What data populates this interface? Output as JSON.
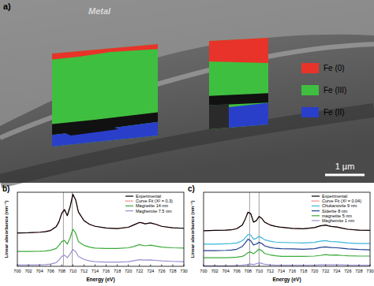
{
  "image_panel": {
    "label": "a)",
    "text": "Metal",
    "scale_bar": "1 µm",
    "legend": [
      {
        "name": "Fe (0)",
        "color": "#e8332a"
      },
      {
        "name": "Fe (III)",
        "color": "#3fbf3f"
      },
      {
        "name": "Fe (II)",
        "color": "#2a3fc9"
      }
    ]
  },
  "chart_data": [
    {
      "type": "line",
      "title": "b)",
      "x_label": "Energy (eV)",
      "y_label": "Linear absorbance (nm⁻¹)",
      "x": [
        700,
        702,
        704,
        705,
        706,
        707,
        707.5,
        708,
        708.5,
        709,
        709.5,
        710,
        710.5,
        711,
        712,
        713,
        714,
        716,
        718,
        720,
        721,
        722,
        722.5,
        723,
        724,
        725,
        726,
        728,
        730
      ],
      "xlim": [
        700,
        730
      ],
      "xticks": [
        700,
        702,
        704,
        706,
        708,
        710,
        712,
        714,
        716,
        718,
        720,
        722,
        724,
        726,
        728,
        730
      ],
      "ylim": [
        0,
        3.0
      ],
      "tick_labels": "x",
      "legend": "upper right",
      "vertical_lines": [
        708.3,
        709.9
      ],
      "series": [
        {
          "name": "Experimental",
          "color": "#000000",
          "line_style": "solid",
          "values": [
            1.35,
            1.36,
            1.38,
            1.4,
            1.45,
            1.6,
            1.8,
            2.15,
            2.3,
            2.05,
            2.4,
            2.92,
            2.7,
            2.2,
            1.85,
            1.7,
            1.62,
            1.55,
            1.53,
            1.58,
            1.68,
            1.78,
            1.76,
            1.72,
            1.76,
            1.7,
            1.62,
            1.56,
            1.54
          ]
        },
        {
          "name": "Curve Fit (X² = 0.3)",
          "color": "#e03030",
          "line_style": "dotted",
          "values": [
            1.34,
            1.36,
            1.38,
            1.41,
            1.46,
            1.62,
            1.83,
            2.13,
            2.27,
            2.08,
            2.42,
            2.88,
            2.68,
            2.22,
            1.86,
            1.7,
            1.63,
            1.55,
            1.53,
            1.59,
            1.67,
            1.76,
            1.75,
            1.73,
            1.75,
            1.69,
            1.62,
            1.56,
            1.54
          ]
        },
        {
          "name": "Magnetite 14 nm",
          "color": "#3aaa3a",
          "line_style": "solid",
          "values": [
            0.6,
            0.6,
            0.61,
            0.62,
            0.65,
            0.72,
            0.85,
            1.0,
            1.05,
            0.9,
            1.15,
            1.5,
            1.35,
            1.0,
            0.85,
            0.78,
            0.74,
            0.72,
            0.72,
            0.75,
            0.8,
            0.88,
            0.85,
            0.83,
            0.86,
            0.82,
            0.78,
            0.75,
            0.74
          ]
        },
        {
          "name": "Maghemite 7.5 nm",
          "color": "#9b8fd0",
          "line_style": "solid",
          "values": [
            0.05,
            0.05,
            0.06,
            0.07,
            0.09,
            0.15,
            0.25,
            0.4,
            0.45,
            0.35,
            0.5,
            0.68,
            0.6,
            0.4,
            0.28,
            0.22,
            0.19,
            0.17,
            0.17,
            0.19,
            0.23,
            0.27,
            0.26,
            0.25,
            0.26,
            0.24,
            0.22,
            0.2,
            0.19
          ]
        }
      ]
    },
    {
      "type": "line",
      "title": "c)",
      "x_label": "Energy (eV)",
      "y_label": "Linear absorbance (nm⁻¹)",
      "x": [
        700,
        702,
        704,
        705,
        706,
        707,
        707.5,
        708,
        708.5,
        709,
        709.5,
        710,
        710.5,
        711,
        712,
        713,
        714,
        716,
        718,
        720,
        721,
        722,
        722.5,
        723,
        724,
        725,
        726,
        728,
        730
      ],
      "xlim": [
        700,
        730
      ],
      "xticks": [
        700,
        702,
        704,
        706,
        708,
        710,
        712,
        714,
        716,
        718,
        720,
        722,
        724,
        726,
        728,
        730
      ],
      "ylim": [
        0,
        2.6
      ],
      "tick_labels": "x",
      "legend": "upper right",
      "vertical_lines": [
        708.3,
        710.0
      ],
      "series": [
        {
          "name": "Experimental",
          "color": "#000000",
          "line_style": "solid",
          "values": [
            1.25,
            1.26,
            1.27,
            1.28,
            1.32,
            1.45,
            1.65,
            1.9,
            1.85,
            1.55,
            1.6,
            1.75,
            1.68,
            1.55,
            1.45,
            1.4,
            1.37,
            1.33,
            1.32,
            1.36,
            1.42,
            1.45,
            1.42,
            1.4,
            1.38,
            1.34,
            1.3,
            1.27,
            1.26
          ]
        },
        {
          "name": "Curve Fit (X² = 0.04)",
          "color": "#e03030",
          "line_style": "dotted",
          "values": [
            1.25,
            1.26,
            1.27,
            1.28,
            1.33,
            1.46,
            1.66,
            1.88,
            1.84,
            1.57,
            1.61,
            1.74,
            1.67,
            1.55,
            1.45,
            1.4,
            1.37,
            1.33,
            1.32,
            1.36,
            1.41,
            1.44,
            1.42,
            1.4,
            1.38,
            1.34,
            1.3,
            1.27,
            1.26
          ]
        },
        {
          "name": "Chukanovite 9 nm",
          "color": "#3bb6d9",
          "line_style": "solid",
          "values": [
            0.78,
            0.78,
            0.79,
            0.8,
            0.82,
            0.9,
            1.0,
            1.12,
            1.1,
            0.95,
            0.98,
            1.05,
            1.0,
            0.93,
            0.88,
            0.85,
            0.84,
            0.83,
            0.82,
            0.84,
            0.88,
            0.9,
            0.88,
            0.87,
            0.86,
            0.84,
            0.82,
            0.8,
            0.8
          ]
        },
        {
          "name": "Siderite 8 nm",
          "color": "#1f3f8f",
          "line_style": "solid",
          "values": [
            0.55,
            0.55,
            0.56,
            0.57,
            0.6,
            0.7,
            0.82,
            0.95,
            0.9,
            0.75,
            0.78,
            0.84,
            0.8,
            0.72,
            0.66,
            0.63,
            0.62,
            0.61,
            0.6,
            0.62,
            0.66,
            0.68,
            0.67,
            0.66,
            0.65,
            0.63,
            0.61,
            0.59,
            0.58
          ]
        },
        {
          "name": "magnetite 5 nm",
          "color": "#3aaa3a",
          "line_style": "solid",
          "values": [
            0.3,
            0.3,
            0.3,
            0.31,
            0.32,
            0.35,
            0.4,
            0.48,
            0.5,
            0.44,
            0.52,
            0.6,
            0.55,
            0.45,
            0.4,
            0.37,
            0.35,
            0.35,
            0.35,
            0.36,
            0.38,
            0.41,
            0.4,
            0.39,
            0.4,
            0.38,
            0.37,
            0.36,
            0.36
          ]
        },
        {
          "name": "Maghemite 1 nm",
          "color": "#9b8fd0",
          "line_style": "solid",
          "values": [
            0.02,
            0.02,
            0.02,
            0.02,
            0.03,
            0.04,
            0.05,
            0.07,
            0.08,
            0.06,
            0.09,
            0.12,
            0.1,
            0.07,
            0.05,
            0.04,
            0.04,
            0.04,
            0.04,
            0.04,
            0.05,
            0.05,
            0.05,
            0.05,
            0.05,
            0.05,
            0.04,
            0.04,
            0.04
          ]
        }
      ]
    }
  ]
}
